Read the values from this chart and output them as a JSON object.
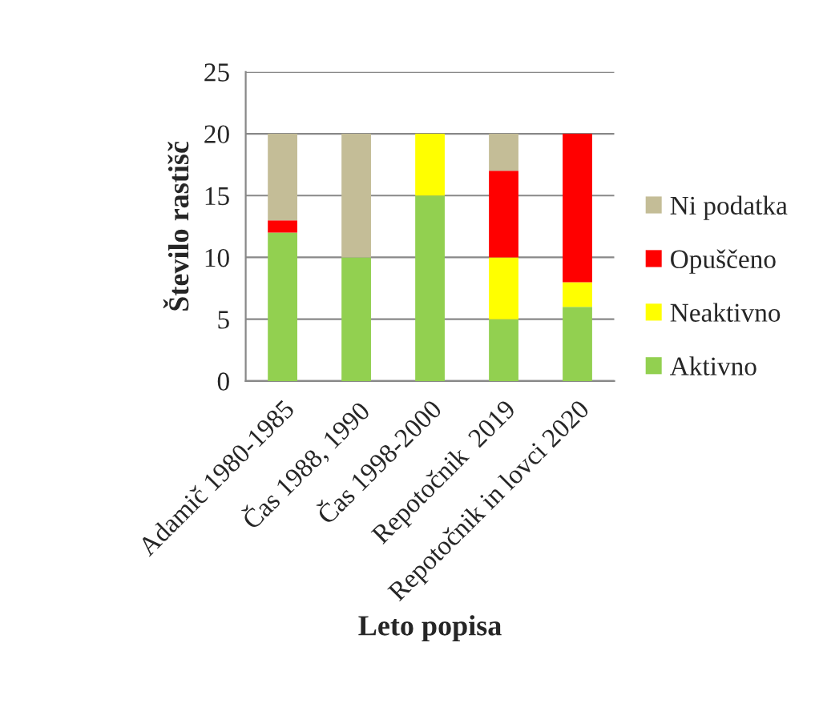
{
  "chart_data": {
    "type": "bar",
    "stacked": true,
    "xlabel": "Leto popisa",
    "ylabel": "Število rastišč",
    "categories": [
      "Adamič 1980-1985",
      "Čas 1988, 1990",
      "Čas 1998-2000",
      "Repotočnik  2019",
      "Repotočnik in lovci 2020"
    ],
    "series": [
      {
        "name": "Aktivno",
        "color": "#92d050",
        "values": [
          12,
          10,
          15,
          5,
          6
        ]
      },
      {
        "name": "Neaktivno",
        "color": "#ffff00",
        "values": [
          0,
          0,
          5,
          5,
          2
        ]
      },
      {
        "name": "Opuščeno",
        "color": "#ff0000",
        "values": [
          1,
          0,
          0,
          7,
          12
        ]
      },
      {
        "name": "Ni podatka",
        "color": "#c4bd97",
        "values": [
          7,
          10,
          0,
          3,
          0
        ]
      }
    ],
    "ylim": [
      0,
      25
    ],
    "yticks": [
      0,
      5,
      10,
      15,
      20,
      25
    ],
    "grid": "y",
    "legend": "right"
  }
}
